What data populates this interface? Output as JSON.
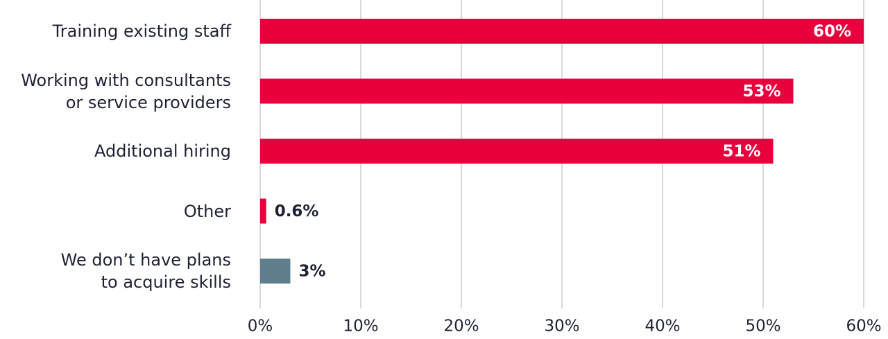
{
  "chart_data": {
    "type": "bar",
    "orientation": "horizontal",
    "categories": [
      "Training existing staff",
      "Working with consultants\nor service providers",
      "Additional hiring",
      "Other",
      "We don’t have plans\nto acquire skills"
    ],
    "values": [
      60,
      53,
      51,
      0.6,
      3
    ],
    "value_labels": [
      "60%",
      "53%",
      "51%",
      "0.6%",
      "3%"
    ],
    "colors": [
      "#e8003d",
      "#e8003d",
      "#e8003d",
      "#e8003d",
      "#5f7f8f"
    ],
    "xlim": [
      0,
      60
    ],
    "xticks": [
      {
        "value": 0,
        "label": "0%"
      },
      {
        "value": 10,
        "label": "10%"
      },
      {
        "value": 20,
        "label": "20%"
      },
      {
        "value": 30,
        "label": "30%"
      },
      {
        "value": 40,
        "label": "40%"
      },
      {
        "value": 50,
        "label": "50%"
      },
      {
        "value": 60,
        "label": "60%"
      }
    ],
    "grid": true
  }
}
